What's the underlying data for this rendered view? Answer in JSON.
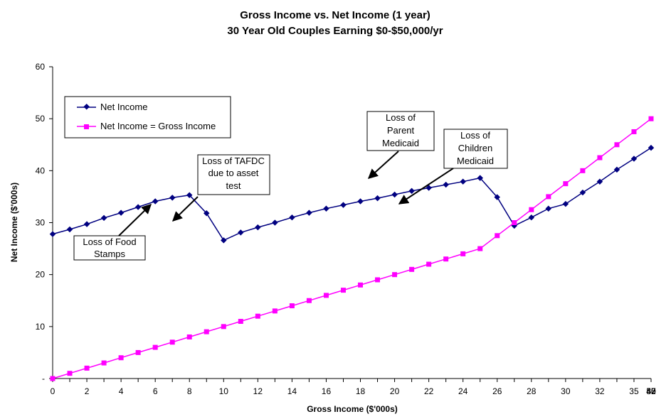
{
  "chart_data": {
    "type": "line",
    "title": "Gross Income vs. Net Income (1 year)",
    "subtitle": "30 Year Old Couples Earning $0-$50,000/yr",
    "xlabel": "Gross Income  ($'000s)",
    "ylabel": "Net Income ($'000s)",
    "xlim": [
      0,
      50
    ],
    "ylim": [
      0,
      60
    ],
    "x_ticks": [
      "0",
      "2",
      "4",
      "6",
      "8",
      "10",
      "12",
      "14",
      "16",
      "18",
      "20",
      "22",
      "24",
      "26",
      "28",
      "30",
      "32",
      "35",
      "37",
      "40",
      "42",
      "45",
      "47",
      "50"
    ],
    "y_ticks": [
      "-",
      "10",
      "20",
      "30",
      "40",
      "50",
      "60"
    ],
    "grid": false,
    "legend_position": "top-left",
    "series": [
      {
        "name": "Net Income",
        "color": "#000080",
        "marker": "diamond",
        "x": [
          0,
          1,
          2,
          3,
          4,
          5,
          6,
          7,
          8,
          9,
          10,
          11,
          12,
          13,
          14,
          15,
          16,
          17,
          18,
          19,
          20,
          21,
          22,
          23,
          24,
          25,
          27.5,
          30,
          32.5,
          35,
          37.5,
          40,
          42.5,
          45,
          47.5,
          50
        ],
        "y": [
          27.8,
          28.7,
          29.7,
          30.9,
          31.9,
          33.0,
          34.1,
          34.8,
          35.3,
          31.8,
          26.6,
          28.1,
          29.1,
          30.0,
          31.0,
          31.9,
          32.7,
          33.4,
          34.1,
          34.7,
          35.4,
          36.1,
          36.7,
          37.3,
          37.9,
          38.6,
          34.9,
          29.4,
          31.0,
          32.7,
          33.6,
          35.8,
          37.9,
          40.2,
          42.3,
          44.4
        ]
      },
      {
        "name": "Net Income = Gross Income",
        "color": "#FF00FF",
        "marker": "square",
        "x": [
          0,
          1,
          2,
          3,
          4,
          5,
          6,
          7,
          8,
          9,
          10,
          11,
          12,
          13,
          14,
          15,
          16,
          17,
          18,
          19,
          20,
          21,
          22,
          23,
          24,
          25,
          27.5,
          30,
          32.5,
          35,
          37.5,
          40,
          42.5,
          45,
          47.5,
          50
        ],
        "y": [
          0,
          1,
          2,
          3,
          4,
          5,
          6,
          7,
          8,
          9,
          10,
          11,
          12,
          13,
          14,
          15,
          16,
          17,
          18,
          19,
          20,
          21,
          22,
          23,
          24,
          25,
          27.5,
          30,
          32.5,
          35,
          37.5,
          40,
          42.5,
          45,
          47.5,
          50
        ]
      }
    ],
    "annotations": [
      {
        "lines": [
          "Loss of Food",
          "Stamps"
        ]
      },
      {
        "lines": [
          "Loss of TAFDC",
          "due to asset",
          "test"
        ]
      },
      {
        "lines": [
          "Loss of",
          "Parent",
          "Medicaid"
        ]
      },
      {
        "lines": [
          "Loss of",
          "Children",
          "Medicaid"
        ]
      }
    ]
  }
}
